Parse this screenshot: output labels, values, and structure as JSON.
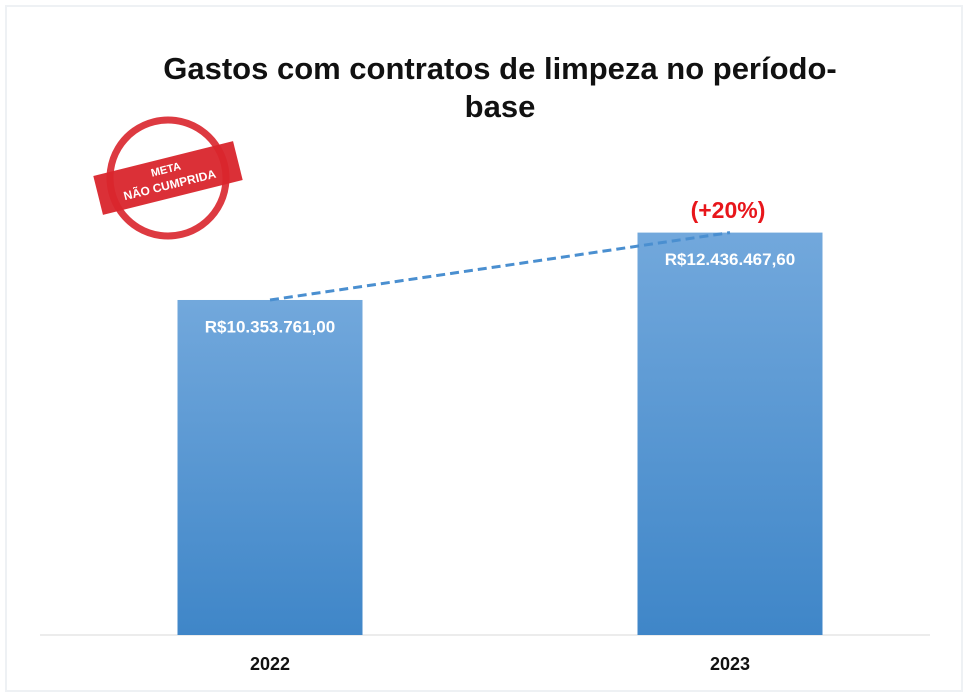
{
  "chart_data": {
    "type": "bar",
    "title": "Gastos com contratos de limpeza no período-base",
    "categories": [
      "2022",
      "2023"
    ],
    "values": [
      10353761.0,
      12436467.6
    ],
    "value_labels": [
      "R$10.353.761,00",
      "R$12.436.467,60"
    ],
    "color": "#5b9bd5",
    "ylim": [
      0,
      14000000
    ],
    "trend_line": true,
    "annotation": "(+20%)",
    "stamp": {
      "line1": "META",
      "line2": "NÃO CUMPRIDA"
    }
  }
}
